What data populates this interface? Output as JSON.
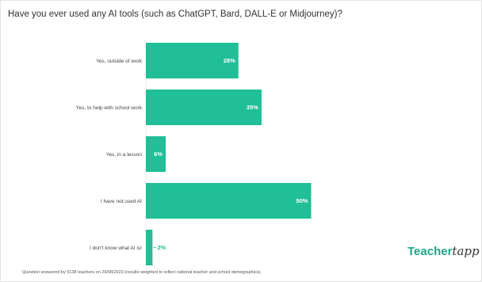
{
  "title": "Have you ever used any AI tools (such as ChatGPT, Bard, DALL-E or Midjourney)?",
  "footnote": "Question answered by 9138 teachers on 29/08/2023 (results weighted to reflect national teacher and school demographics).",
  "brand": {
    "main": "Teacher",
    "script": "tapp"
  },
  "colors": {
    "bar": "#20bf97",
    "value_inside": "#ffffff",
    "value_outside": "#20bf97",
    "brand": "#1fa58a"
  },
  "chart_data": {
    "type": "bar",
    "orientation": "horizontal",
    "categories": [
      "Yes, outside of work",
      "Yes, to help with school work",
      "Yes, in a lesson",
      "I have not used AI",
      "I don't know what AI is!"
    ],
    "values": [
      28,
      35,
      6,
      50,
      2
    ],
    "value_labels": [
      "28%",
      "35%",
      "6%",
      "50%",
      "2%"
    ],
    "unit": "%",
    "xlim": [
      0,
      53
    ],
    "grid": false,
    "legend": "none"
  }
}
